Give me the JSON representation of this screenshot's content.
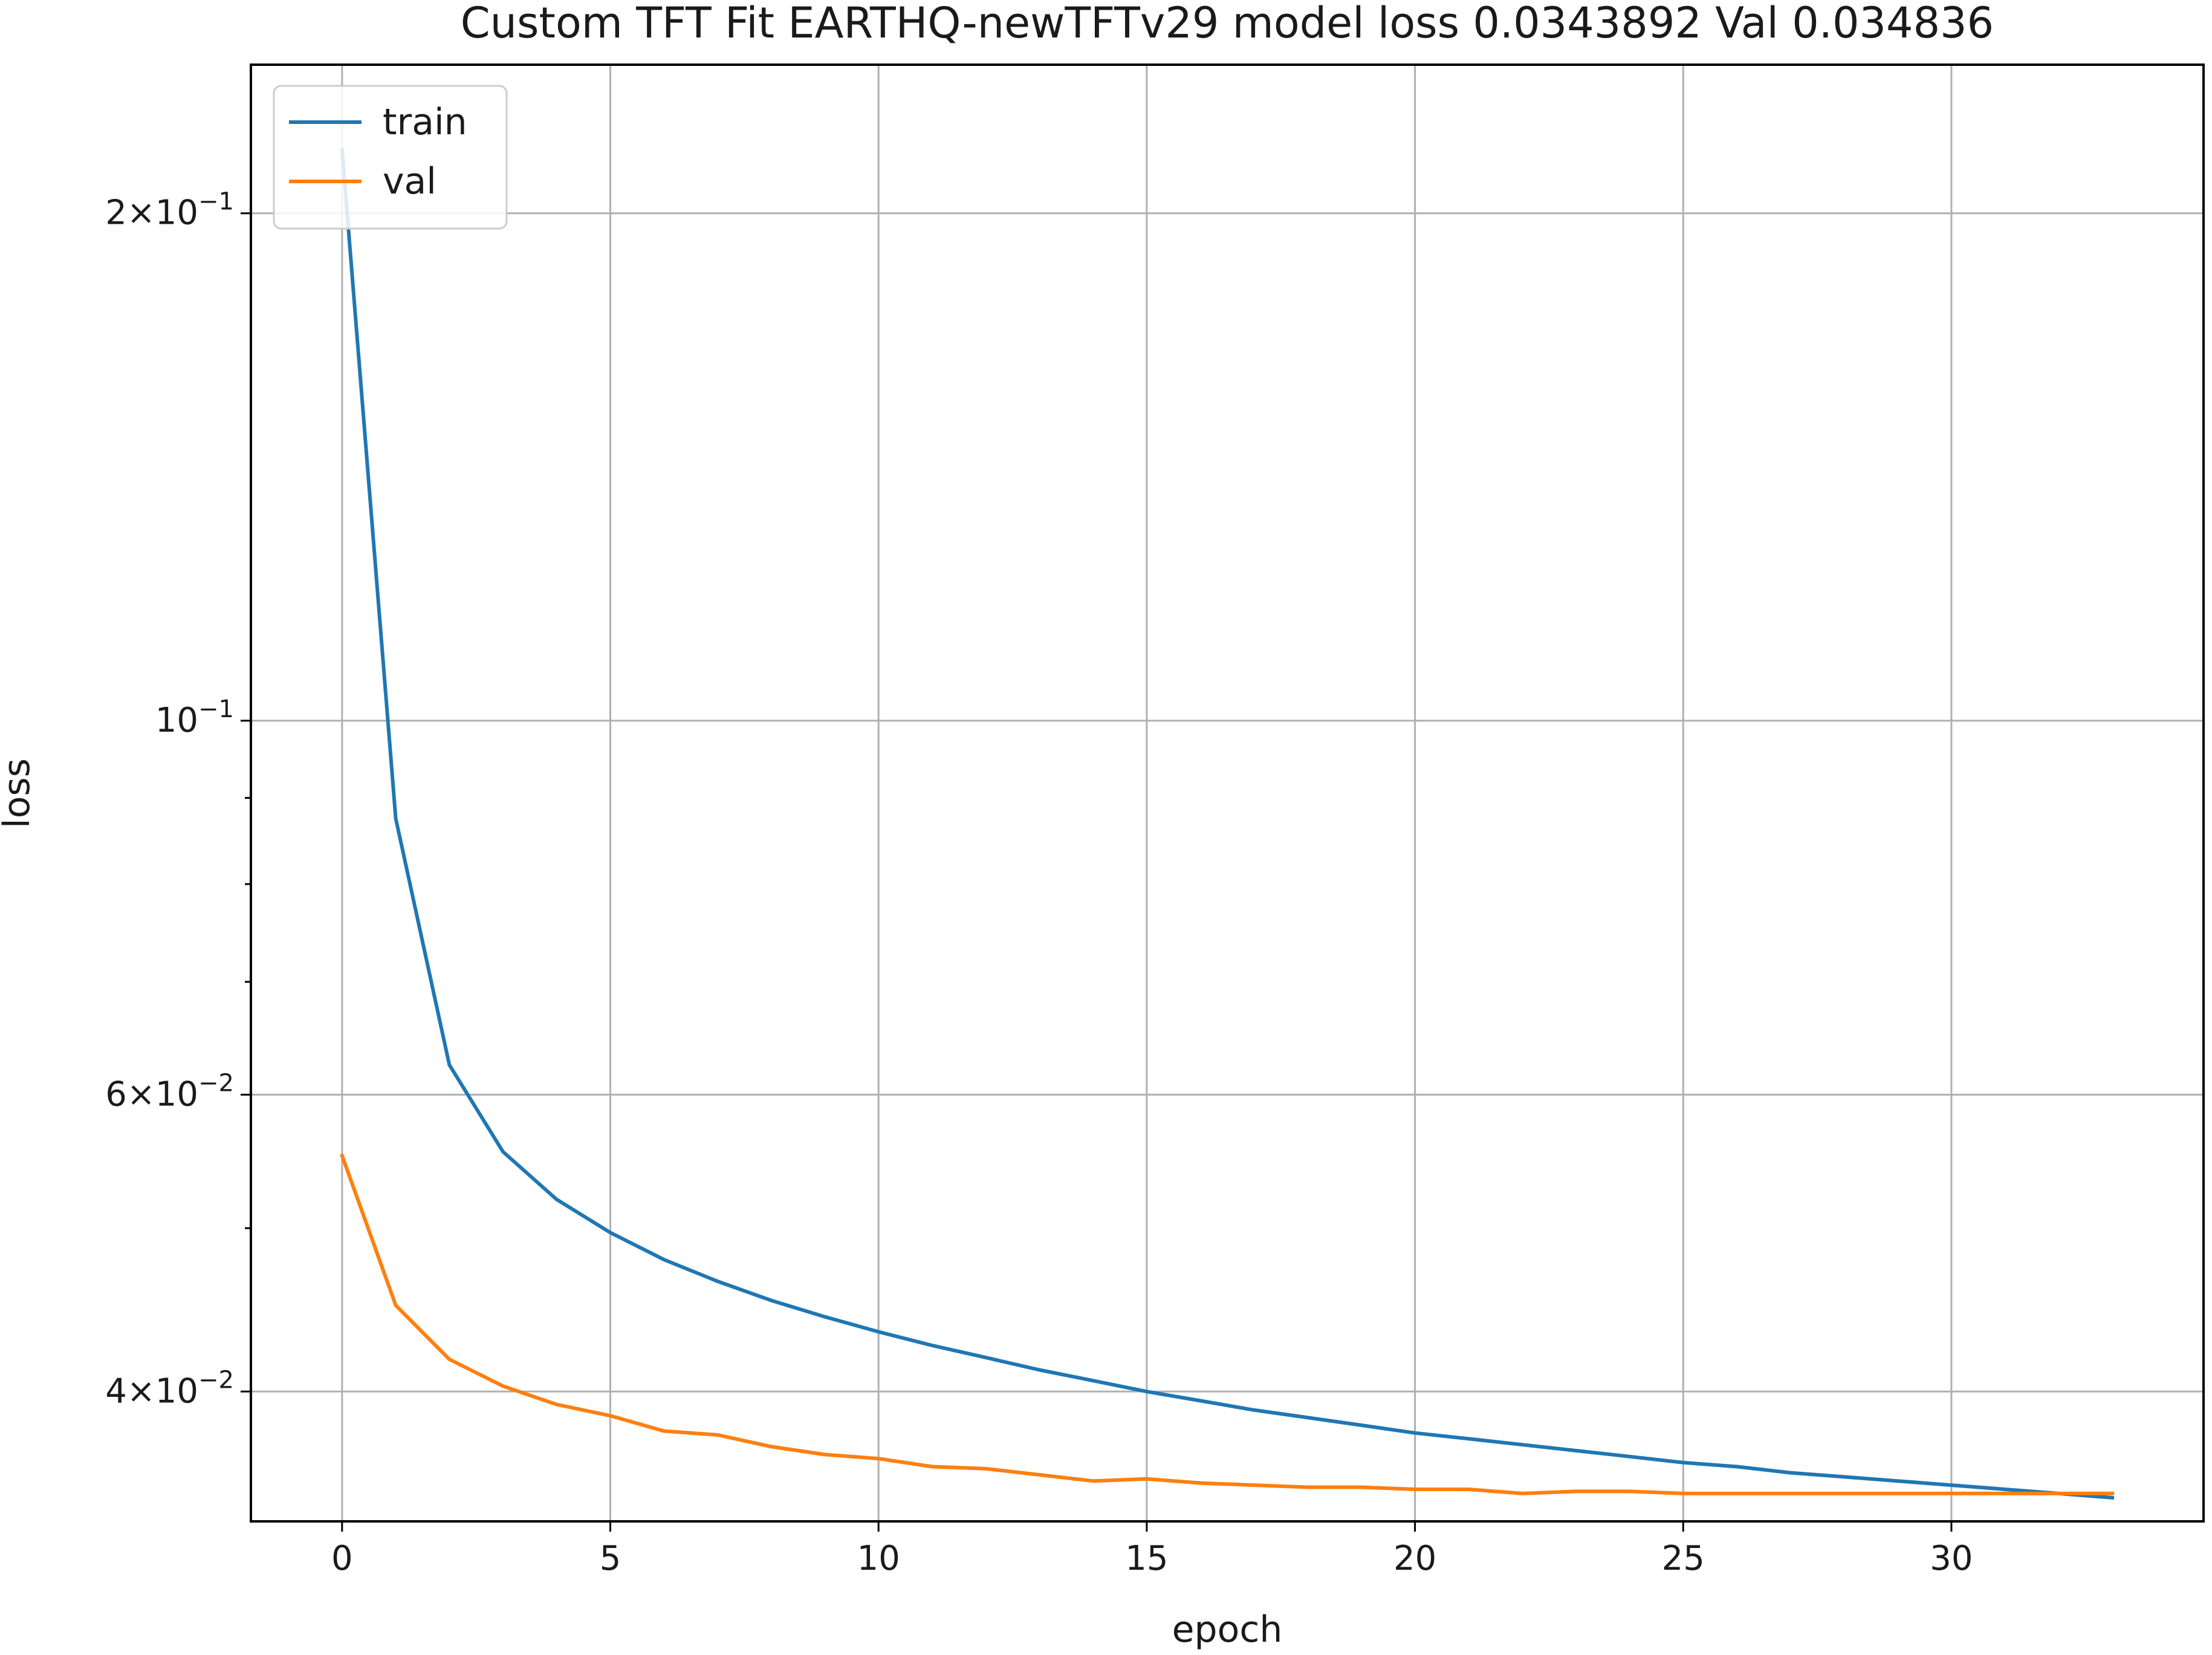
{
  "chart_data": {
    "type": "line",
    "title": "Custom TFT Fit EARTHQ-newTFTv29 model loss 0.0343892 Val 0.034836",
    "xlabel": "epoch",
    "ylabel": "loss",
    "yscale": "log",
    "grid": true,
    "legend_position": "top-left",
    "xlim": [
      -1.7,
      34.7
    ],
    "ylim": [
      0.0335,
      0.245
    ],
    "x_ticks": [
      0,
      5,
      10,
      15,
      20,
      25,
      30
    ],
    "y_ticks": [
      {
        "value": 0.2,
        "mantissa": "2",
        "exponent": "−1"
      },
      {
        "value": 0.1,
        "mantissa": "",
        "exponent": "−1"
      },
      {
        "value": 0.06,
        "mantissa": "6",
        "exponent": "−2"
      },
      {
        "value": 0.04,
        "mantissa": "4",
        "exponent": "−2"
      }
    ],
    "y_minor_ticks": [
      0.09,
      0.08,
      0.07,
      0.05
    ],
    "x": [
      0,
      1,
      2,
      3,
      4,
      5,
      6,
      7,
      8,
      9,
      10,
      11,
      12,
      13,
      14,
      15,
      16,
      17,
      18,
      19,
      20,
      21,
      22,
      23,
      24,
      25,
      26,
      27,
      28,
      29,
      30,
      31,
      32,
      33
    ],
    "series": [
      {
        "name": "train",
        "color": "#1f77b4",
        "values": [
          0.218,
          0.0875,
          0.0625,
          0.0555,
          0.052,
          0.0497,
          0.0479,
          0.0465,
          0.0453,
          0.0443,
          0.0434,
          0.0426,
          0.0419,
          0.0412,
          0.0406,
          0.04,
          0.0395,
          0.039,
          0.0386,
          0.0382,
          0.0378,
          0.0375,
          0.0372,
          0.0369,
          0.0366,
          0.0363,
          0.0361,
          0.0358,
          0.0356,
          0.0354,
          0.0352,
          0.035,
          0.0348,
          0.0346
        ]
      },
      {
        "name": "val",
        "color": "#ff7f0e",
        "values": [
          0.0552,
          0.045,
          0.0418,
          0.0403,
          0.0393,
          0.0387,
          0.0379,
          0.0377,
          0.0371,
          0.0367,
          0.0365,
          0.0361,
          0.036,
          0.0357,
          0.0354,
          0.0355,
          0.0353,
          0.0352,
          0.0351,
          0.0351,
          0.035,
          0.035,
          0.0348,
          0.0349,
          0.0349,
          0.0348,
          0.0348,
          0.0348,
          0.0348,
          0.0348,
          0.0348,
          0.0348,
          0.0348,
          0.0348
        ]
      }
    ]
  }
}
